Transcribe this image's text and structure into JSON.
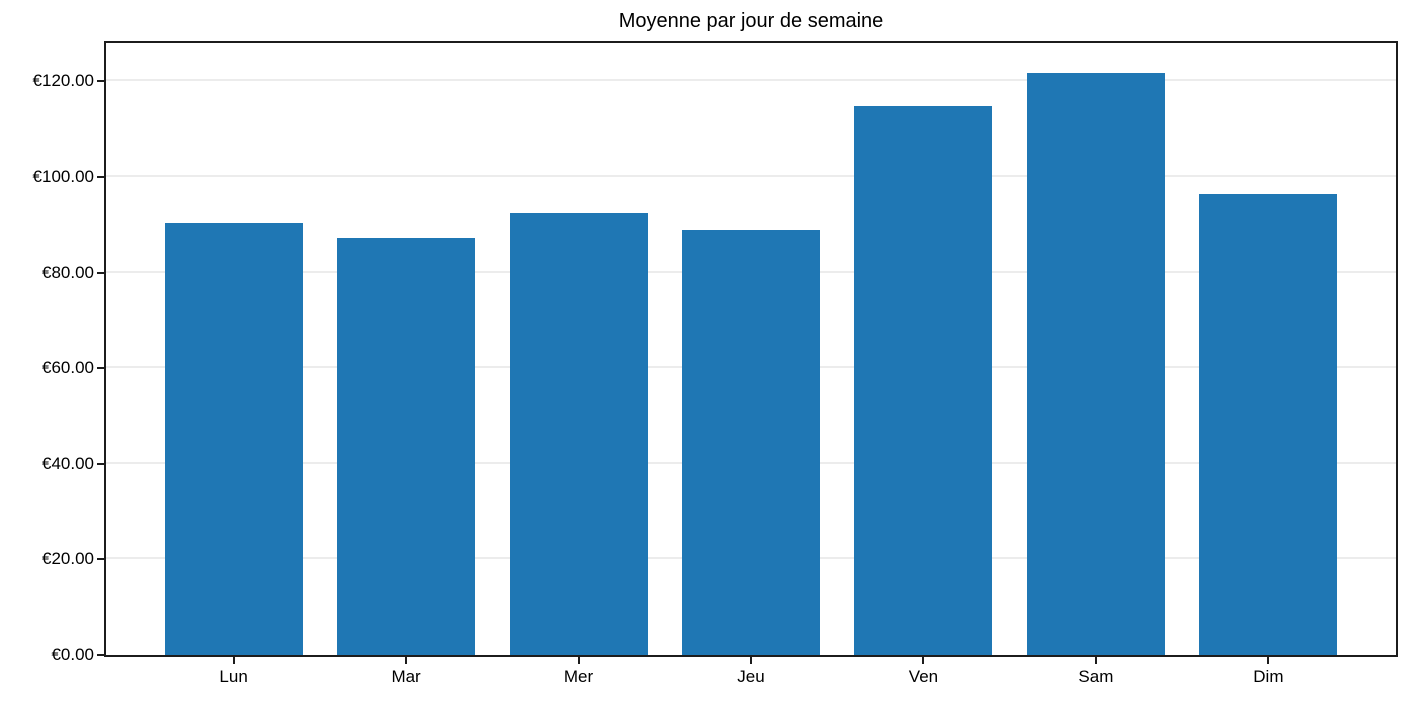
{
  "chart_data": {
    "type": "bar",
    "title": "Moyenne par jour de semaine",
    "categories": [
      "Lun",
      "Mar",
      "Mer",
      "Jeu",
      "Ven",
      "Sam",
      "Dim"
    ],
    "values": [
      90.4,
      87.3,
      92.5,
      88.9,
      114.8,
      121.8,
      96.5
    ],
    "xlabel": "",
    "ylabel": "",
    "ylim": [
      0,
      128
    ],
    "yticks": [
      0,
      20,
      40,
      60,
      80,
      100,
      120
    ],
    "ytick_labels": [
      "€0.00",
      "€20.00",
      "€40.00",
      "€60.00",
      "€80.00",
      "€100.00",
      "€120.00"
    ],
    "grid": "horizontal-only",
    "legend": "none",
    "bar_color": "#1f77b4",
    "grid_color": "#ececec",
    "axis_color": "#1c1c1c",
    "text_color": "#000000",
    "bar_width_fraction": 0.8
  }
}
